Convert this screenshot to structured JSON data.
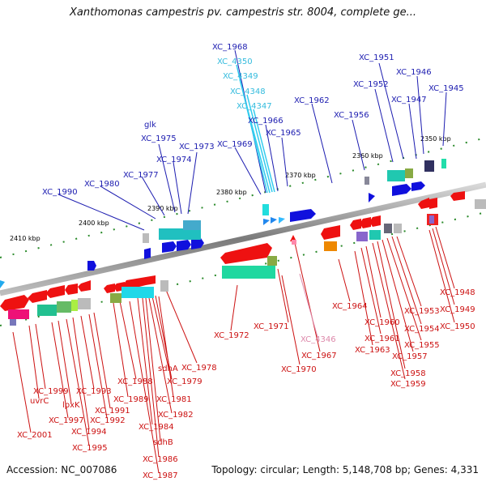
{
  "title": "Xanthomonas campestris pv. campestris str. 8004, complete ge...",
  "accession": "Accession: NC_007086",
  "topology": "Topology: circular; Length: 5,148,708 bp; Genes: 4,331",
  "ticks": [
    "2350 kbp",
    "2360 kbp",
    "2370 kbp",
    "2380 kbp",
    "2390 kbp",
    "2400 kbp",
    "2410 kbp"
  ],
  "top_labels": [
    "XC_1968",
    "XC_4350",
    "XC_4349",
    "XC_4348",
    "XC_4347",
    "XC_1951",
    "XC_1946",
    "XC_1945",
    "XC_1952",
    "XC_1947",
    "XC_1962",
    "XC_1956",
    "XC_1966",
    "XC_1965",
    "glk",
    "XC_1975",
    "XC_1973",
    "XC_1969",
    "XC_1974",
    "XC_1977",
    "XC_1980",
    "XC_1990"
  ],
  "bottom_labels": [
    "XC_1948",
    "XC_1949",
    "XC_1950",
    "XC_1953",
    "XC_1954",
    "XC_1955",
    "XC_1957",
    "XC_1958",
    "XC_1959",
    "XC_1964",
    "XC_1960",
    "XC_1961",
    "XC_1963",
    "XC_1971",
    "XC_4346",
    "XC_1967",
    "XC_1970",
    "XC_1972",
    "XC_1978",
    "sdhA",
    "XC_1979",
    "XC_1988",
    "XC_1981",
    "XC_1989",
    "XC_1982",
    "XC_1999",
    "XC_1993",
    "uvrC",
    "XC_1991",
    "lpxK",
    "XC_1992",
    "XC_1997",
    "XC_1984",
    "XC_1994",
    "XC_2001",
    "sdhB",
    "XC_1995",
    "XC_1986",
    "XC_1987"
  ],
  "colors": {
    "top_label": "#1c1cb0",
    "cyan_label": "#33bbdd",
    "bottom_label": "#cc1111",
    "pink_label": "#dd88aa",
    "tick_dot": "#2a8a2a",
    "backbone": "#808080"
  }
}
